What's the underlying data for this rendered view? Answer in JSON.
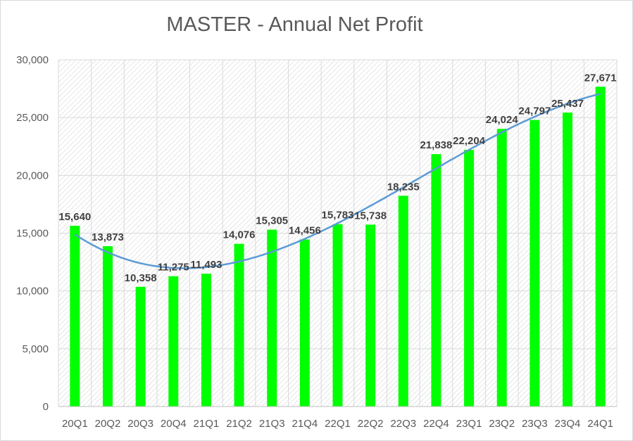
{
  "chart_data": {
    "type": "bar",
    "title": "MASTER - Annual Net Profit",
    "xlabel": "",
    "ylabel": "",
    "categories": [
      "20Q1",
      "20Q2",
      "20Q3",
      "20Q4",
      "21Q1",
      "21Q2",
      "21Q3",
      "21Q4",
      "22Q1",
      "22Q2",
      "22Q3",
      "22Q4",
      "23Q1",
      "23Q2",
      "23Q3",
      "23Q4",
      "24Q1"
    ],
    "values": [
      15640,
      13873,
      10358,
      11275,
      11493,
      14076,
      15305,
      14456,
      15783,
      15738,
      18235,
      21838,
      22204,
      24024,
      24797,
      25437,
      27671
    ],
    "data_labels": [
      "15,640",
      "13,873",
      "10,358",
      "11,275",
      "11,493",
      "14,076",
      "15,305",
      "14,456",
      "15,783",
      "15,738",
      "18,235",
      "21,838",
      "22,204",
      "24,024",
      "24,797",
      "25,437",
      "27,671"
    ],
    "yticks": [
      0,
      5000,
      10000,
      15000,
      20000,
      25000,
      30000
    ],
    "ytick_labels": [
      "0",
      "5,000",
      "10,000",
      "15,000",
      "20,000",
      "25,000",
      "30,000"
    ],
    "ylim": [
      0,
      30000
    ],
    "trendline": "polynomial",
    "grid": true,
    "legend": "none",
    "colors": {
      "bar": "#00ff00",
      "trendline": "#5b9bd5",
      "gridline": "#d9d9d9",
      "plot_hatch": "#d0d0d0"
    }
  }
}
